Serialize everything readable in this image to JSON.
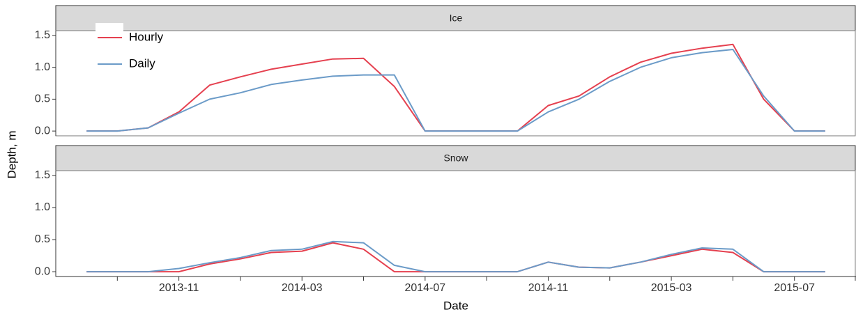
{
  "chart_data": [
    {
      "type": "line",
      "title": "Ice",
      "y_label": "Depth, m",
      "legend": "top-left",
      "x": [
        "2013-08",
        "2013-09",
        "2013-10",
        "2013-11",
        "2013-12",
        "2014-01",
        "2014-02",
        "2014-03",
        "2014-04",
        "2014-05",
        "2014-06",
        "2014-07",
        "2014-08",
        "2014-09",
        "2014-10",
        "2014-11",
        "2014-12",
        "2015-01",
        "2015-02",
        "2015-03",
        "2015-04",
        "2015-05",
        "2015-06",
        "2015-07",
        "2015-08"
      ],
      "series": [
        {
          "name": "Hourly",
          "color": "#e5404f",
          "values": [
            0,
            0,
            0.05,
            0.3,
            0.72,
            0.85,
            0.97,
            1.05,
            1.13,
            1.14,
            0.7,
            0,
            0,
            0,
            0,
            0.4,
            0.55,
            0.85,
            1.08,
            1.22,
            1.3,
            1.36,
            0.5,
            0,
            0
          ]
        },
        {
          "name": "Daily",
          "color": "#6b9bc8",
          "values": [
            0,
            0,
            0.05,
            0.28,
            0.5,
            0.6,
            0.73,
            0.8,
            0.86,
            0.88,
            0.88,
            0,
            0,
            0,
            0,
            0.3,
            0.5,
            0.78,
            1.0,
            1.15,
            1.23,
            1.28,
            0.55,
            0,
            0
          ]
        }
      ],
      "xlim": [
        "2013-07",
        "2015-09"
      ],
      "ylim": [
        -0.075,
        1.575
      ],
      "yticks": [
        {
          "value": 0,
          "label": "0.0"
        },
        {
          "value": 0.5,
          "label": "0.5"
        },
        {
          "value": 1,
          "label": "1.0"
        },
        {
          "value": 1.5,
          "label": "1.5"
        }
      ]
    },
    {
      "type": "line",
      "title": "Snow",
      "x_label": "Date",
      "x": [
        "2013-08",
        "2013-09",
        "2013-10",
        "2013-11",
        "2013-12",
        "2014-01",
        "2014-02",
        "2014-03",
        "2014-04",
        "2014-05",
        "2014-06",
        "2014-07",
        "2014-08",
        "2014-09",
        "2014-10",
        "2014-11",
        "2014-12",
        "2015-01",
        "2015-02",
        "2015-03",
        "2015-04",
        "2015-05",
        "2015-06",
        "2015-07",
        "2015-08"
      ],
      "series": [
        {
          "color": "#e5404f",
          "values": [
            0,
            0,
            0,
            0,
            0.12,
            0.2,
            0.3,
            0.32,
            0.45,
            0.35,
            0,
            0,
            0,
            0,
            0,
            0.15,
            0.07,
            0.06,
            0.15,
            0.25,
            0.35,
            0.3,
            0,
            0,
            0
          ]
        },
        {
          "color": "#6b9bc8",
          "values": [
            0,
            0,
            0,
            0.05,
            0.14,
            0.22,
            0.33,
            0.35,
            0.47,
            0.45,
            0.1,
            0,
            0,
            0,
            0,
            0.15,
            0.07,
            0.06,
            0.15,
            0.27,
            0.37,
            0.35,
            0,
            0,
            0
          ]
        }
      ],
      "xlim": [
        "2013-07",
        "2015-09"
      ],
      "xticks": [
        "2013-11",
        "2014-03",
        "2014-07",
        "2014-11",
        "2015-03",
        "2015-07"
      ],
      "xminor_ticks": [
        "2013-09",
        "2014-01",
        "2014-05",
        "2014-09",
        "2015-01",
        "2015-05",
        "2015-09"
      ],
      "ylim": [
        -0.075,
        1.575
      ],
      "yticks": [
        {
          "value": 0,
          "label": "0.0"
        },
        {
          "value": 0.5,
          "label": "0.5"
        },
        {
          "value": 1,
          "label": "1.0"
        },
        {
          "value": 1.5,
          "label": "1.5"
        }
      ]
    }
  ]
}
